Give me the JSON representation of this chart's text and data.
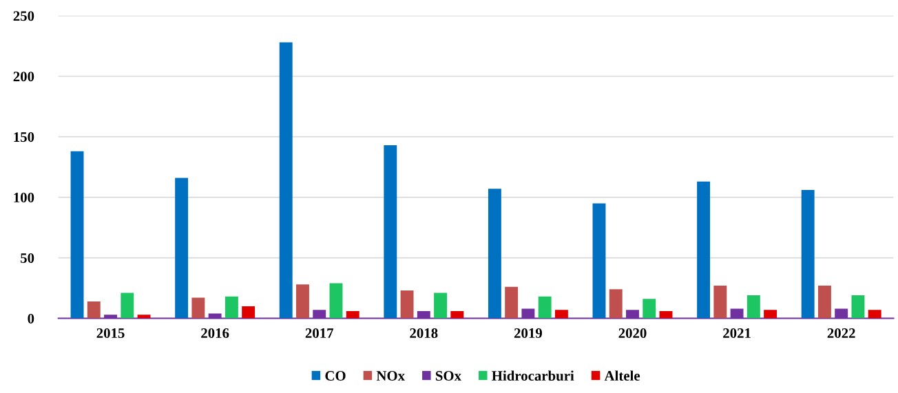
{
  "chart_data": {
    "type": "bar",
    "categories": [
      "2015",
      "2016",
      "2017",
      "2018",
      "2019",
      "2020",
      "2021",
      "2022"
    ],
    "series": [
      {
        "name": "CO",
        "color": "#0070c0",
        "values": [
          138,
          116,
          228,
          143,
          107,
          95,
          113,
          106
        ]
      },
      {
        "name": "NOx",
        "color": "#c0504d",
        "values": [
          14,
          17,
          28,
          23,
          26,
          24,
          27,
          27
        ]
      },
      {
        "name": "SOx",
        "color": "#7030a0",
        "values": [
          3,
          4,
          7,
          6,
          8,
          7,
          8,
          8
        ]
      },
      {
        "name": "Hidrocarburi",
        "color": "#1ec663",
        "values": [
          21,
          18,
          29,
          21,
          18,
          16,
          19,
          19
        ]
      },
      {
        "name": "Altele",
        "color": "#e00000",
        "values": [
          3,
          10,
          6,
          6,
          7,
          6,
          7,
          7
        ]
      }
    ],
    "ylim": [
      0,
      250
    ],
    "yticks": [
      0,
      50,
      100,
      150,
      200,
      250
    ],
    "grid": "y",
    "legend": "bottom"
  }
}
